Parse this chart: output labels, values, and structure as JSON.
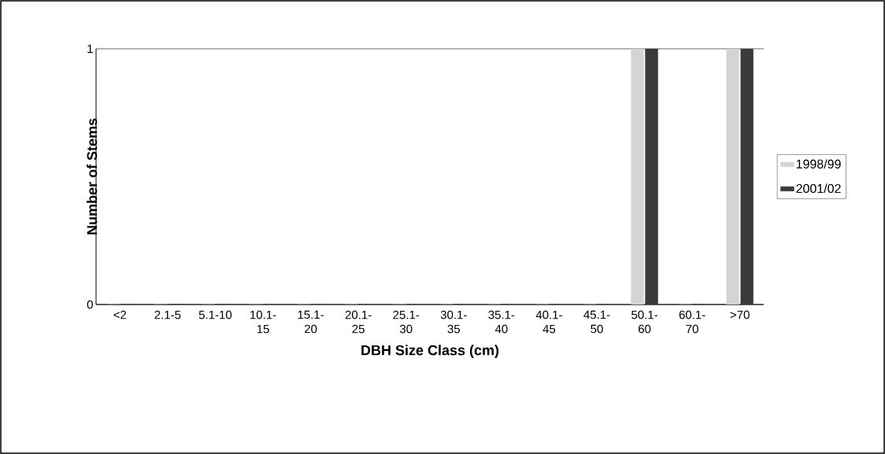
{
  "chart_data": {
    "type": "bar",
    "xlabel": "DBH Size Class (cm)",
    "ylabel": "Number of Stems",
    "categories": [
      "<2",
      "2.1-5",
      "5.1-10",
      "10.1-15",
      "15.1-20",
      "20.1-25",
      "25.1-30",
      "30.1-35",
      "35.1-40",
      "40.1-45",
      "45.1-50",
      "50.1-60",
      "60.1-70",
      ">70"
    ],
    "series": [
      {
        "name": "1998/99",
        "color": "#d4d4d4",
        "values": [
          0,
          0,
          0,
          0,
          0,
          0,
          0,
          0,
          0,
          0,
          0,
          1,
          0,
          1
        ]
      },
      {
        "name": "2001/02",
        "color": "#3a3a3a",
        "values": [
          0,
          0,
          0,
          0,
          0,
          0,
          0,
          0,
          0,
          0,
          0,
          1,
          0,
          1
        ]
      }
    ],
    "ylim": [
      0,
      1
    ],
    "yticks": [
      0,
      1
    ],
    "grid": "y",
    "legend": "right"
  }
}
